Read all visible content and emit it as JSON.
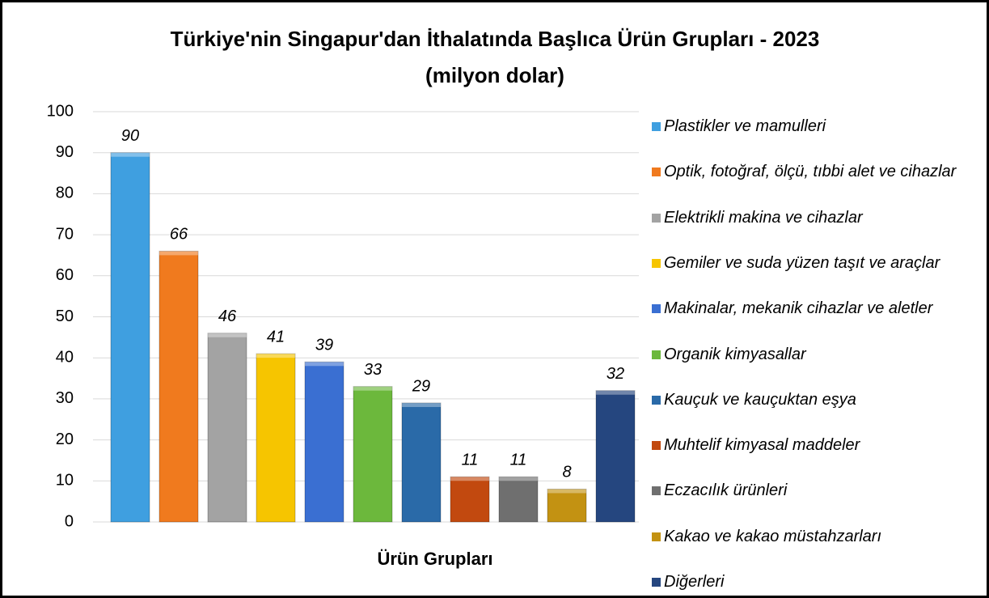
{
  "chart_data": {
    "type": "bar",
    "title": "Türkiye'nin Singapur'dan İthalatında Başlıca Ürün Grupları - 2023",
    "subtitle": "(milyon dolar)",
    "x_label": "Ürün Grupları",
    "categories": [
      "Plastikler ve mamulleri",
      "Optik, fotoğraf, ölçü, tıbbi alet ve cihazlar",
      "Elektrikli makina ve cihazlar",
      "Gemiler ve suda yüzen taşıt ve araçlar",
      "Makinalar, mekanik cihazlar ve aletler",
      "Organik kimyasallar",
      "Kauçuk ve kauçuktan eşya",
      "Muhtelif kimyasal maddeler",
      "Eczacılık ürünleri",
      "Kakao ve kakao müstahzarları",
      "Diğerleri"
    ],
    "values": [
      90,
      66,
      46,
      41,
      39,
      33,
      29,
      11,
      11,
      8,
      32
    ],
    "colors": [
      "#3f9fe0",
      "#f07a1e",
      "#a3a3a3",
      "#f6c500",
      "#3a6fd2",
      "#6cb83c",
      "#2a6aa8",
      "#c2490f",
      "#6f6f6f",
      "#c39212",
      "#25467f"
    ],
    "ylim": [
      0,
      100
    ],
    "yticks": [
      0,
      10,
      20,
      30,
      40,
      50,
      60,
      70,
      80,
      90,
      100
    ],
    "grid": true,
    "legend": "right"
  }
}
